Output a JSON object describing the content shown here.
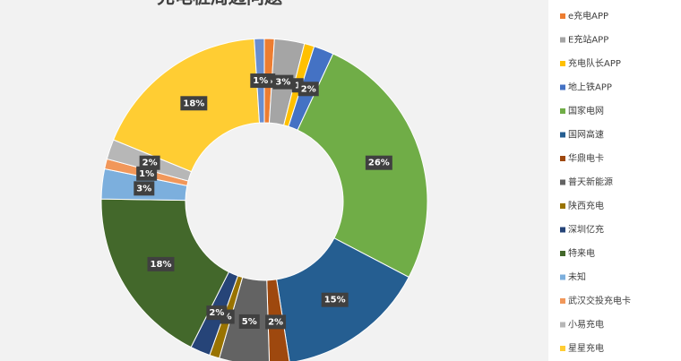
{
  "chart_data": {
    "type": "donut",
    "title": "充电桩周边问题",
    "categories": [
      "e充电APP",
      "E充站APP",
      "充电队长APP",
      "地上铁APP",
      "国家电网",
      "国网高速",
      "华鼎电卡",
      "普天新能源",
      "陕西充电",
      "深圳亿充",
      "特来电",
      "未知",
      "武汉交投充电卡",
      "小易充电",
      "星星充电",
      null
    ],
    "values": [
      1,
      3,
      1,
      2,
      26,
      15,
      2,
      5,
      1,
      2,
      18,
      3,
      1,
      2,
      18,
      1
    ],
    "value_labels": [
      "%",
      "3%",
      "1",
      "2%",
      "26%",
      "15%",
      "2%",
      "5%",
      "%",
      "2%",
      "18%",
      "3%",
      "1%",
      "2%",
      "18%",
      "1%"
    ],
    "colors": [
      "#ed7d31",
      "#a5a5a5",
      "#ffc000",
      "#4472c4",
      "#70ad47",
      "#255e91",
      "#9e480e",
      "#636363",
      "#997300",
      "#264478",
      "#43682b",
      "#7cafdd",
      "#f1975a",
      "#b7b7b7",
      "#ffcd33",
      "#698ed0"
    ],
    "legend": "right"
  }
}
